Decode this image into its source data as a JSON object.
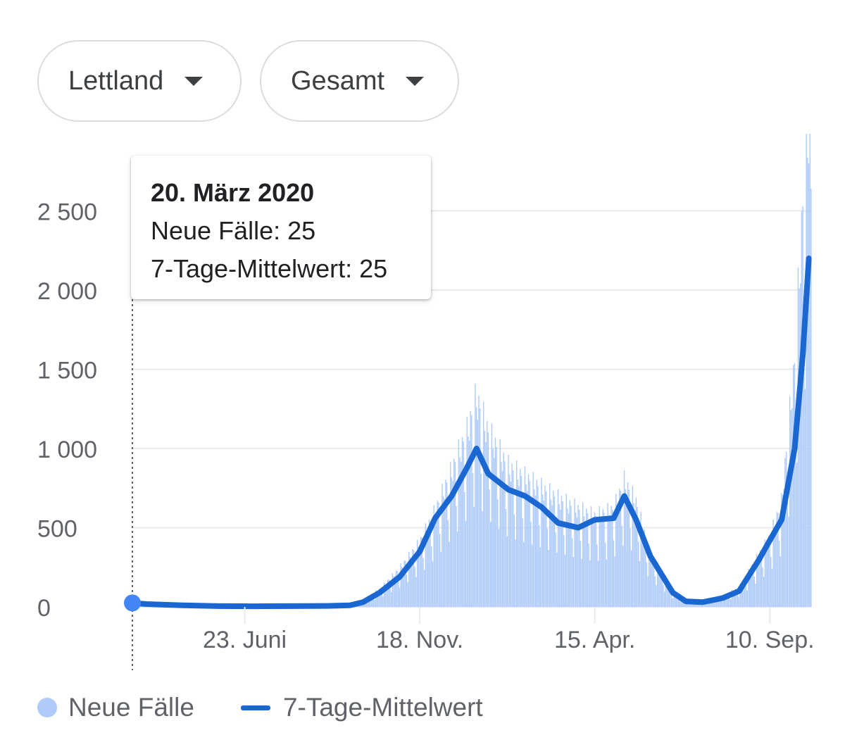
{
  "filters": {
    "country": "Lettland",
    "metric": "Gesamt"
  },
  "tooltip": {
    "date": "20. März 2020",
    "new_cases": "Neue Fälle: 25",
    "avg": "7-Tage-Mittelwert: 25"
  },
  "legend": {
    "bars": "Neue Fälle",
    "line": "7-Tage-Mittelwert"
  },
  "colors": {
    "bars": "#aecbfa",
    "line": "#1a67d2",
    "marker": "#4285f4",
    "grid": "#e8eaed"
  },
  "chart_data": {
    "type": "bar",
    "title": "",
    "xlabel": "",
    "ylabel": "",
    "ylim": [
      0,
      2800
    ],
    "y_ticks": [
      0,
      500,
      1000,
      1500,
      2000,
      2500
    ],
    "y_tick_labels": [
      "0",
      "500",
      "1 000",
      "1 500",
      "2 000",
      "2 500"
    ],
    "x_ticks": [
      {
        "date": "2020-06-23",
        "label": "23. Juni"
      },
      {
        "date": "2020-11-18",
        "label": "18. Nov."
      },
      {
        "date": "2021-04-15",
        "label": "15. Apr."
      },
      {
        "date": "2021-09-10",
        "label": "10. Sep."
      }
    ],
    "x_start": "2020-03-20",
    "x_end": "2021-10-15",
    "grid": true,
    "legend_position": "bottom-left",
    "series": [
      {
        "name": "Neue Fälle",
        "type": "bar",
        "points": [
          [
            "2020-03-20",
            25
          ],
          [
            "2020-04-01",
            20
          ],
          [
            "2020-05-01",
            10
          ],
          [
            "2020-06-01",
            5
          ],
          [
            "2020-07-01",
            4
          ],
          [
            "2020-08-01",
            5
          ],
          [
            "2020-09-01",
            6
          ],
          [
            "2020-09-20",
            10
          ],
          [
            "2020-10-01",
            40
          ],
          [
            "2020-10-15",
            100
          ],
          [
            "2020-11-01",
            220
          ],
          [
            "2020-11-18",
            370
          ],
          [
            "2020-12-01",
            550
          ],
          [
            "2020-12-15",
            780
          ],
          [
            "2020-12-28",
            1000
          ],
          [
            "2021-01-05",
            1200
          ],
          [
            "2021-01-15",
            1000
          ],
          [
            "2021-02-01",
            800
          ],
          [
            "2021-02-15",
            740
          ],
          [
            "2021-03-01",
            680
          ],
          [
            "2021-03-15",
            620
          ],
          [
            "2021-04-01",
            560
          ],
          [
            "2021-04-15",
            520
          ],
          [
            "2021-05-01",
            560
          ],
          [
            "2021-05-10",
            720
          ],
          [
            "2021-05-20",
            600
          ],
          [
            "2021-06-01",
            300
          ],
          [
            "2021-06-20",
            100
          ],
          [
            "2021-07-01",
            40
          ],
          [
            "2021-07-15",
            30
          ],
          [
            "2021-08-01",
            60
          ],
          [
            "2021-08-15",
            110
          ],
          [
            "2021-09-01",
            300
          ],
          [
            "2021-09-10",
            400
          ],
          [
            "2021-09-20",
            600
          ],
          [
            "2021-10-01",
            1400
          ],
          [
            "2021-10-08",
            2300
          ],
          [
            "2021-10-13",
            2800
          ],
          [
            "2021-10-15",
            2400
          ]
        ]
      },
      {
        "name": "7-Tage-Mittelwert",
        "type": "line",
        "points": [
          [
            "2020-03-20",
            25
          ],
          [
            "2020-04-01",
            18
          ],
          [
            "2020-05-01",
            10
          ],
          [
            "2020-06-01",
            5
          ],
          [
            "2020-07-01",
            4
          ],
          [
            "2020-08-01",
            5
          ],
          [
            "2020-09-01",
            6
          ],
          [
            "2020-09-20",
            10
          ],
          [
            "2020-10-01",
            30
          ],
          [
            "2020-10-15",
            90
          ],
          [
            "2020-11-01",
            190
          ],
          [
            "2020-11-18",
            350
          ],
          [
            "2020-12-01",
            560
          ],
          [
            "2020-12-15",
            700
          ],
          [
            "2020-12-28",
            880
          ],
          [
            "2021-01-05",
            1000
          ],
          [
            "2021-01-15",
            840
          ],
          [
            "2021-02-01",
            740
          ],
          [
            "2021-02-15",
            700
          ],
          [
            "2021-03-01",
            630
          ],
          [
            "2021-03-15",
            530
          ],
          [
            "2021-04-01",
            500
          ],
          [
            "2021-04-15",
            550
          ],
          [
            "2021-05-01",
            560
          ],
          [
            "2021-05-10",
            700
          ],
          [
            "2021-05-20",
            550
          ],
          [
            "2021-06-01",
            320
          ],
          [
            "2021-06-20",
            90
          ],
          [
            "2021-07-01",
            35
          ],
          [
            "2021-07-15",
            30
          ],
          [
            "2021-08-01",
            55
          ],
          [
            "2021-08-15",
            100
          ],
          [
            "2021-09-01",
            300
          ],
          [
            "2021-09-10",
            420
          ],
          [
            "2021-09-20",
            550
          ],
          [
            "2021-10-01",
            1000
          ],
          [
            "2021-10-08",
            1600
          ],
          [
            "2021-10-13",
            2200
          ]
        ]
      }
    ],
    "selected_point": {
      "date": "2020-03-20",
      "value": 25
    }
  }
}
